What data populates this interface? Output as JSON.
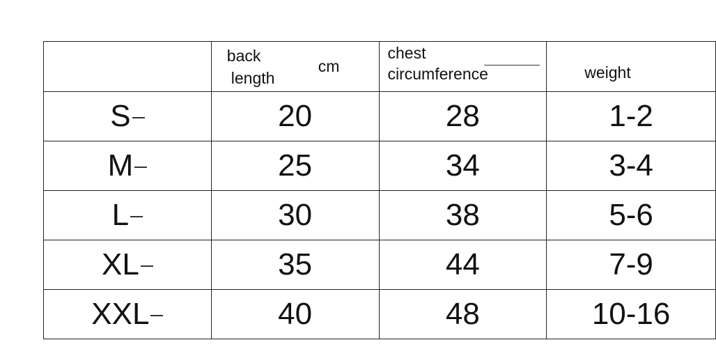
{
  "headers": {
    "size": "",
    "back_length": "back length",
    "back_length_line1": "back",
    "back_length_line2": "length",
    "unit": "cm",
    "chest_line1": "chest",
    "chest_line2": "circumference",
    "weight": "weight"
  },
  "rows": [
    {
      "size": "S",
      "back_length": "20",
      "chest": "28",
      "weight": "1-2"
    },
    {
      "size": "M",
      "back_length": "25",
      "chest": "34",
      "weight": "3-4"
    },
    {
      "size": "L",
      "back_length": "30",
      "chest": "38",
      "weight": "5-6"
    },
    {
      "size": "XL",
      "back_length": "35",
      "chest": "44",
      "weight": "7-9"
    },
    {
      "size": "XXL",
      "back_length": "40",
      "chest": "48",
      "weight": "10-16"
    }
  ]
}
